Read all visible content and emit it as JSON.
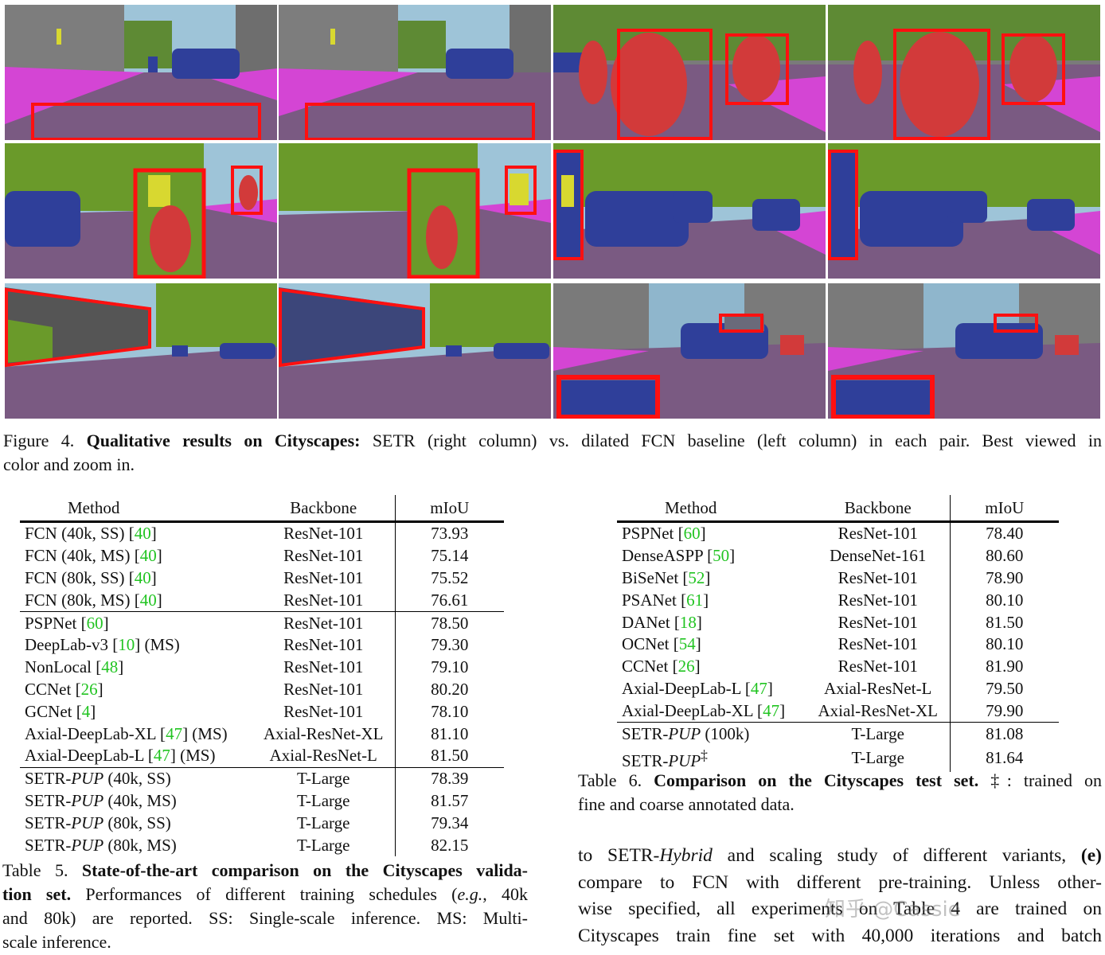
{
  "figure": {
    "label": "Figure 4.",
    "title": "Qualitative results on Cityscapes:",
    "text_line1": "SETR (right column) vs. dilated FCN baseline (left column) in each pair. Best viewed in",
    "text_line2": "color and zoom in."
  },
  "table5": {
    "headers": [
      "Method",
      "Backbone",
      "mIoU"
    ],
    "groups": [
      [
        {
          "method": "FCN (40k, SS) [",
          "cite": "40",
          "suffix": "]",
          "backbone": "ResNet-101",
          "miou": "73.93"
        },
        {
          "method": "FCN (40k, MS) [",
          "cite": "40",
          "suffix": "]",
          "backbone": "ResNet-101",
          "miou": "75.14"
        },
        {
          "method": "FCN (80k, SS) [",
          "cite": "40",
          "suffix": "]",
          "backbone": "ResNet-101",
          "miou": "75.52"
        },
        {
          "method": "FCN (80k, MS) [",
          "cite": "40",
          "suffix": "]",
          "backbone": "ResNet-101",
          "miou": "76.61"
        }
      ],
      [
        {
          "method": "PSPNet [",
          "cite": "60",
          "suffix": "]",
          "backbone": "ResNet-101",
          "miou": "78.50"
        },
        {
          "method": "DeepLab-v3 [",
          "cite": "10",
          "suffix": "] (MS)",
          "backbone": "ResNet-101",
          "miou": "79.30"
        },
        {
          "method": "NonLocal [",
          "cite": "48",
          "suffix": "]",
          "backbone": "ResNet-101",
          "miou": "79.10"
        },
        {
          "method": "CCNet [",
          "cite": "26",
          "suffix": "]",
          "backbone": "ResNet-101",
          "miou": "80.20"
        },
        {
          "method": "GCNet [",
          "cite": "4",
          "suffix": "]",
          "backbone": "ResNet-101",
          "miou": "78.10"
        },
        {
          "method": "Axial-DeepLab-XL [",
          "cite": "47",
          "suffix": "] (MS)",
          "backbone": "Axial-ResNet-XL",
          "miou": "81.10"
        },
        {
          "method": "Axial-DeepLab-L [",
          "cite": "47",
          "suffix": "] (MS)",
          "backbone": "Axial-ResNet-L",
          "miou": "81.50"
        }
      ],
      [
        {
          "method": "SETR-",
          "italic": "PUP",
          "suffix": " (40k, SS)",
          "backbone": "T-Large",
          "miou": "78.39"
        },
        {
          "method": "SETR-",
          "italic": "PUP",
          "suffix": " (40k, MS)",
          "backbone": "T-Large",
          "miou": "81.57"
        },
        {
          "method": "SETR-",
          "italic": "PUP",
          "suffix": " (80k, SS)",
          "backbone": "T-Large",
          "miou": "79.34"
        },
        {
          "method": "SETR-",
          "italic": "PUP",
          "suffix": " (80k, MS)",
          "backbone": "T-Large",
          "miou": "82.15",
          "bold": true
        }
      ]
    ],
    "caption": {
      "label": "Table 5.",
      "title": "State-of-the-art comparison on the Cityscapes valida-",
      "title2": "tion set.",
      "line2": "Performances of different training schedules (",
      "eg": "e.g.",
      "line2_end": ", 40k",
      "line3": "and 80k) are reported. SS: Single-scale inference. MS: Multi-",
      "line4": "scale inference."
    }
  },
  "table6": {
    "headers": [
      "Method",
      "Backbone",
      "mIoU"
    ],
    "groups": [
      [
        {
          "method": "PSPNet [",
          "cite": "60",
          "suffix": "]",
          "backbone": "ResNet-101",
          "miou": "78.40"
        },
        {
          "method": "DenseASPP [",
          "cite": "50",
          "suffix": "]",
          "backbone": "DenseNet-161",
          "miou": "80.60"
        },
        {
          "method": "BiSeNet [",
          "cite": "52",
          "suffix": "]",
          "backbone": "ResNet-101",
          "miou": "78.90"
        },
        {
          "method": "PSANet [",
          "cite": "61",
          "suffix": "]",
          "backbone": "ResNet-101",
          "miou": "80.10"
        },
        {
          "method": "DANet [",
          "cite": "18",
          "suffix": "]",
          "backbone": "ResNet-101",
          "miou": "81.50"
        },
        {
          "method": "OCNet [",
          "cite": "54",
          "suffix": "]",
          "backbone": "ResNet-101",
          "miou": "80.10"
        },
        {
          "method": "CCNet [",
          "cite": "26",
          "suffix": "]",
          "backbone": "ResNet-101",
          "miou": "81.90"
        },
        {
          "method": "Axial-DeepLab-L [",
          "cite": "47",
          "suffix": "]",
          "backbone": "Axial-ResNet-L",
          "miou": "79.50"
        },
        {
          "method": "Axial-DeepLab-XL [",
          "cite": "47",
          "suffix": "]",
          "backbone": "Axial-ResNet-XL",
          "miou": "79.90"
        }
      ],
      [
        {
          "method": "SETR-",
          "italic": "PUP",
          "suffix": " (100k)",
          "backbone": "T-Large",
          "miou": "81.08"
        },
        {
          "method": "SETR-",
          "italic": "PUP",
          "suffix": "‡",
          "sup": true,
          "backbone": "T-Large",
          "miou": "81.64"
        }
      ]
    ],
    "caption": {
      "label": "Table 6.",
      "title": "Comparison on the Cityscapes test set.",
      "line1_end": "‡: trained on",
      "line2": "fine and coarse annotated data."
    }
  },
  "body_text": {
    "l1a": "to SETR-",
    "l1i": "Hybrid",
    "l1b": " and scaling study of different variants, ",
    "l1c": "(e)",
    "l2": "compare to FCN with different pre-training. Unless other-",
    "l3": "wise specified, all experiments on Table 4 are trained on",
    "l4": "Cityscapes train fine set with 40,000 iterations and batch"
  },
  "watermark": "知乎 @Cassie",
  "colors": {
    "road": "#7a5a82",
    "sidewalk": "#d445d4",
    "vehicle": "#2f3f9a",
    "person": "#d23a3a",
    "vegetation": "#6a9a2a",
    "building": "#7a7a7a",
    "sky": "#8fb6cc",
    "highlight": "#ff1010",
    "citation": "#22c422"
  }
}
